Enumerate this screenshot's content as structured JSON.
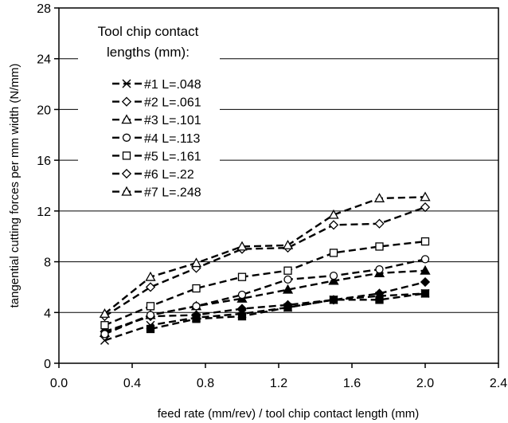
{
  "chart_data": {
    "type": "line",
    "xlabel": "feed rate (mm/rev) / tool chip contact length (mm)",
    "ylabel": "tangential cutting forces per mm width (N/mm)",
    "xlim": [
      0.0,
      2.4
    ],
    "ylim": [
      0,
      28
    ],
    "x_ticks": [
      "0.0",
      "0.4",
      "0.8",
      "1.2",
      "1.6",
      "2.0",
      "2.4"
    ],
    "y_ticks": [
      "0",
      "4",
      "8",
      "12",
      "16",
      "20",
      "24",
      "28"
    ],
    "grid": "horizontal",
    "legend_title": [
      "Tool chip contact",
      "lengths (mm):"
    ],
    "legend_position": "top-left",
    "series": [
      {
        "name": "#1 L=.048",
        "marker": "x",
        "fill": "open",
        "x": [
          0.25,
          0.5,
          0.75,
          1.0,
          1.25,
          1.5,
          1.75,
          2.0
        ],
        "y": [
          1.8,
          3.0,
          3.6,
          3.9,
          4.4,
          5.0,
          5.3,
          5.5
        ]
      },
      {
        "name": "#2 L=.061",
        "marker": "diamond",
        "fill": "filled",
        "x": [
          0.25,
          0.5,
          0.75,
          1.0,
          1.25,
          1.5,
          1.75,
          2.0
        ],
        "y": [
          2.5,
          3.7,
          3.8,
          4.3,
          4.6,
          5.0,
          5.5,
          6.4
        ]
      },
      {
        "name": "#3 L=.101",
        "marker": "triangle",
        "fill": "filled",
        "x": [
          0.25,
          0.5,
          0.75,
          1.0,
          1.25,
          1.5,
          1.75,
          2.0
        ],
        "y": [
          2.4,
          3.8,
          4.5,
          5.1,
          5.8,
          6.5,
          7.1,
          7.3
        ]
      },
      {
        "name": "#4 L=.113",
        "marker": "circle",
        "fill": "open",
        "x": [
          0.25,
          0.5,
          0.75,
          1.0,
          1.25,
          1.5,
          1.75,
          2.0
        ],
        "y": [
          2.3,
          3.8,
          4.5,
          5.4,
          6.6,
          6.9,
          7.4,
          8.2
        ]
      },
      {
        "name": "#5 L=.161",
        "marker": "square",
        "fill": "open",
        "x": [
          0.25,
          0.5,
          0.75,
          1.0,
          1.25,
          1.5,
          1.75,
          2.0
        ],
        "y": [
          3.0,
          4.5,
          5.9,
          6.8,
          7.3,
          8.7,
          9.2,
          9.6
        ]
      },
      {
        "name": "#6 L=.22",
        "marker": "diamond",
        "fill": "open",
        "x": [
          0.25,
          0.5,
          0.75,
          1.0,
          1.25,
          1.5,
          1.75,
          2.0
        ],
        "y": [
          3.7,
          6.0,
          7.5,
          9.0,
          9.1,
          10.9,
          11.0,
          12.3
        ]
      },
      {
        "name": "#7 L=.248",
        "marker": "triangle",
        "fill": "open",
        "x": [
          0.25,
          0.5,
          0.75,
          1.0,
          1.25,
          1.5,
          1.75,
          2.0
        ],
        "y": [
          3.9,
          6.8,
          7.9,
          9.2,
          9.3,
          11.7,
          13.0,
          13.1
        ]
      },
      {
        "name": "",
        "marker": "square",
        "fill": "filled",
        "x": [
          0.5,
          0.75,
          1.0,
          1.25,
          1.5,
          1.75,
          2.0
        ],
        "y": [
          2.7,
          3.5,
          3.7,
          4.4,
          5.0,
          5.0,
          5.5
        ]
      }
    ]
  }
}
